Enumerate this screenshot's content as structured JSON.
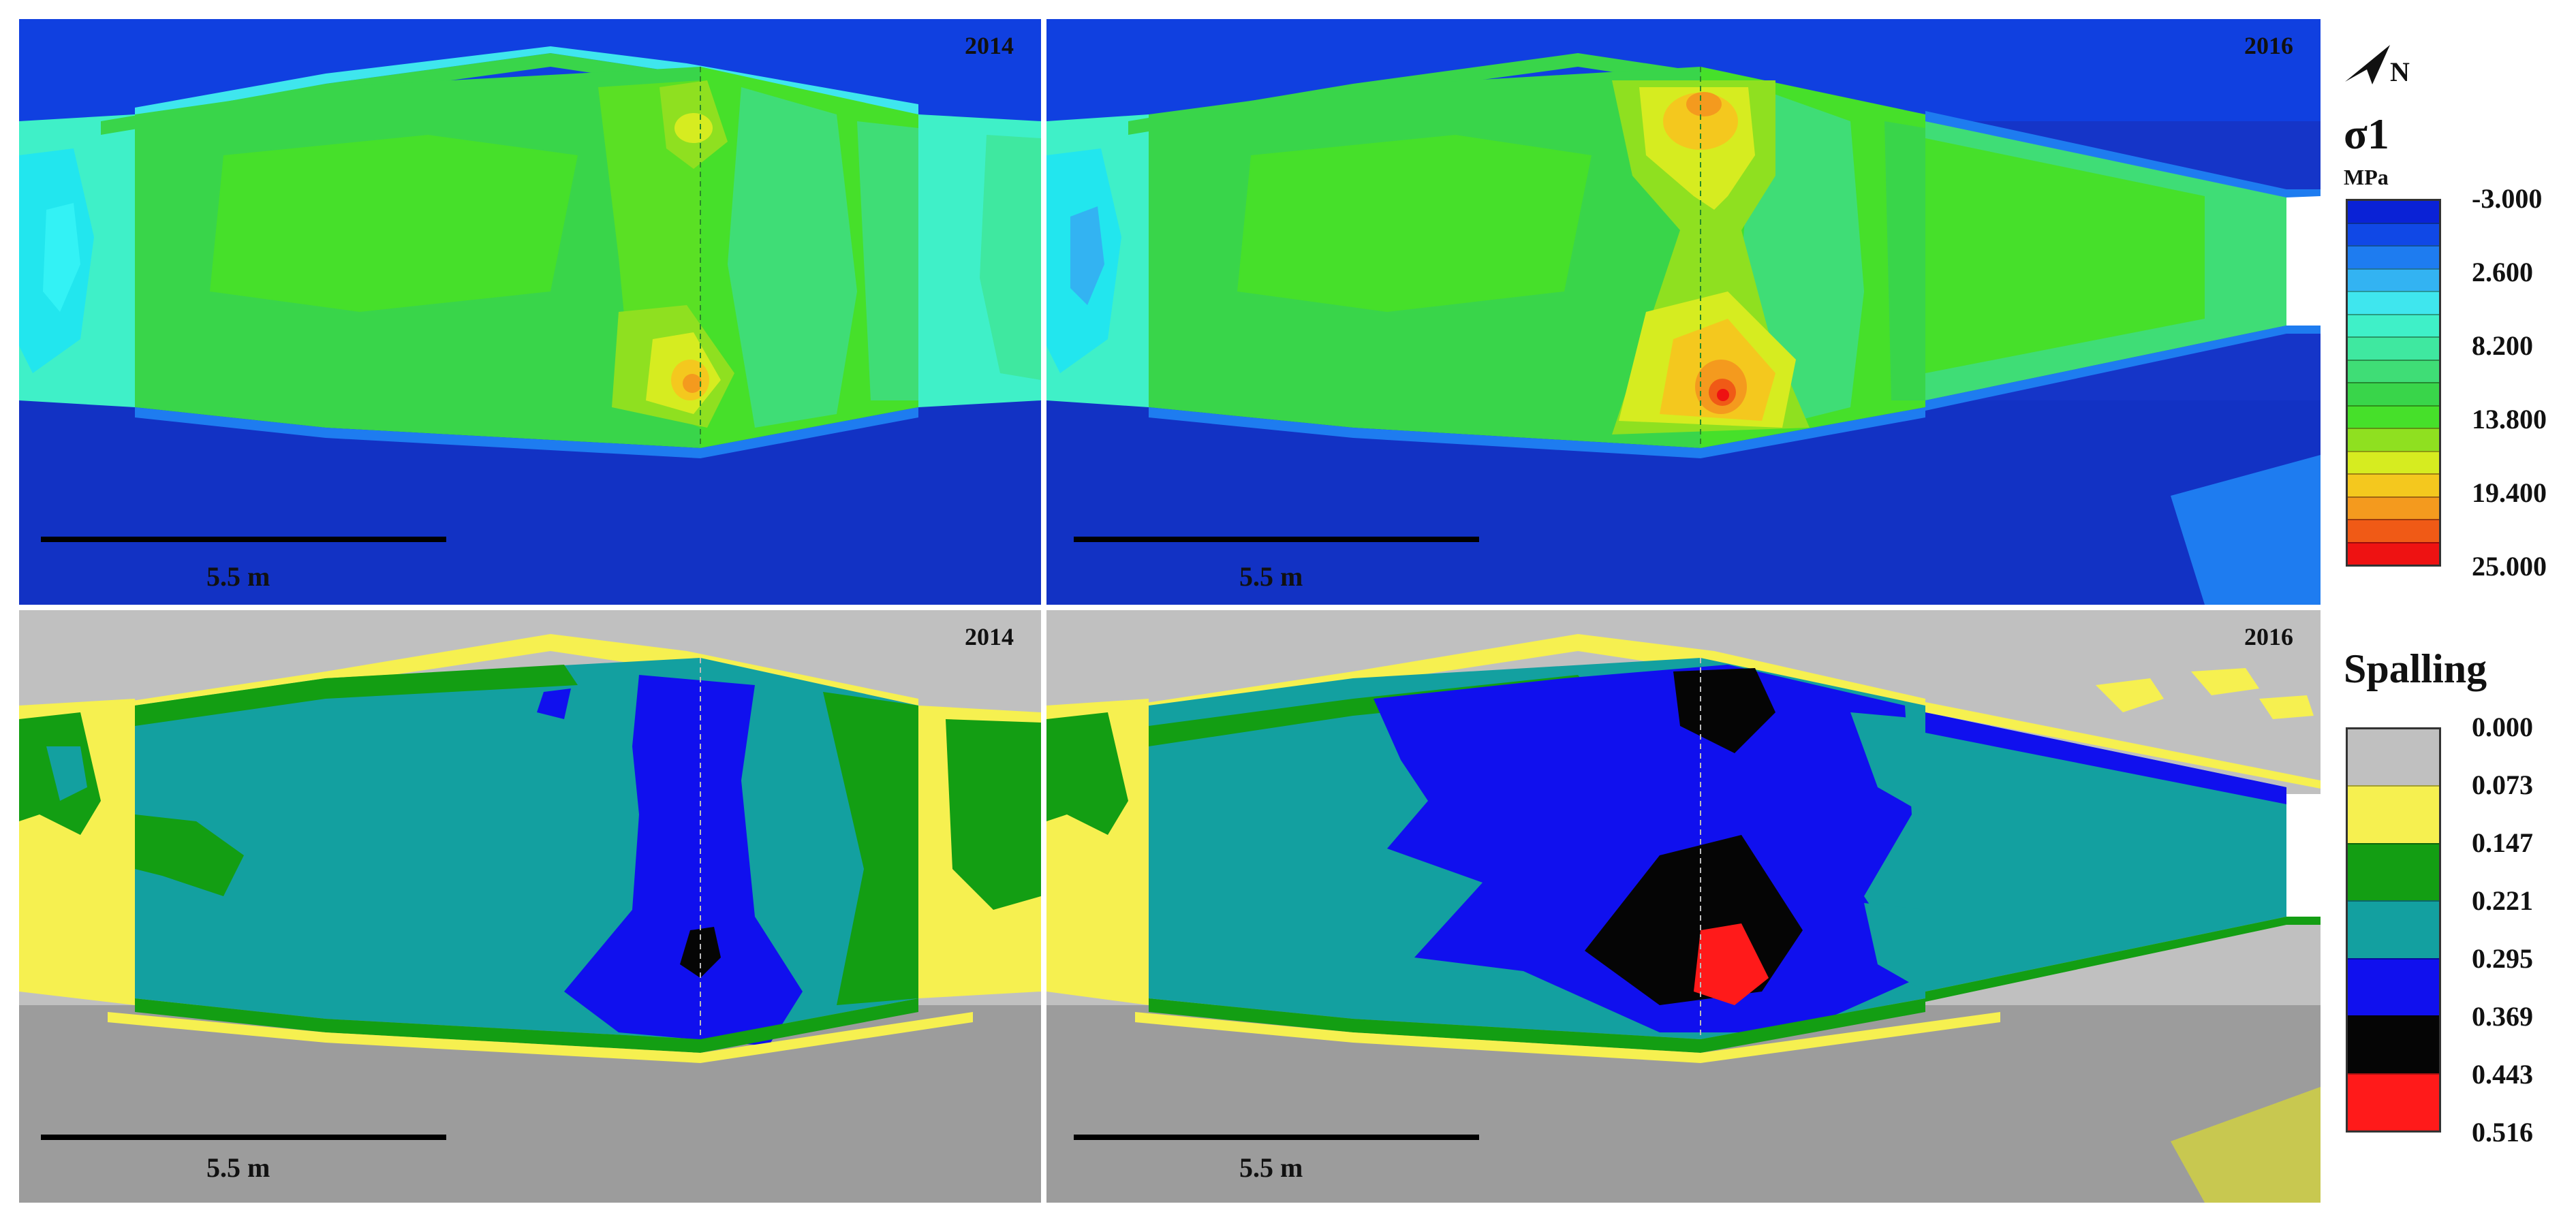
{
  "panels": {
    "stress_2014": {
      "year": "2014",
      "scale_bar": "5.5 m"
    },
    "stress_2016": {
      "year": "2016",
      "scale_bar": "5.5 m"
    },
    "spall_2014": {
      "year": "2014",
      "scale_bar": "5.5 m"
    },
    "spall_2016": {
      "year": "2016",
      "scale_bar": "5.5 m"
    }
  },
  "north": {
    "label": "N",
    "icon": "north-arrow-icon"
  },
  "stress_legend": {
    "title": "σ1",
    "unit": "MPa",
    "ticks": [
      "-3.000",
      "2.600",
      "8.200",
      "13.800",
      "19.400",
      "25.000"
    ],
    "colors": [
      "#0a22d6",
      "#1048e6",
      "#1e7cf0",
      "#33b3f2",
      "#3fe6ee",
      "#3ff0c8",
      "#3fe8a0",
      "#3fdd76",
      "#39d54a",
      "#46e02a",
      "#8fe020",
      "#d6ec20",
      "#f4c81e",
      "#f49a1e",
      "#f05a16",
      "#ee1212"
    ]
  },
  "spall_legend": {
    "title": "Spalling",
    "ticks": [
      "0.000",
      "0.073",
      "0.147",
      "0.221",
      "0.295",
      "0.369",
      "0.443",
      "0.516"
    ],
    "colors": [
      "#c0c0c0",
      "#f6f050",
      "#139e13",
      "#13a0a0",
      "#1010ee",
      "#050505",
      "#ff1a1a"
    ]
  }
}
